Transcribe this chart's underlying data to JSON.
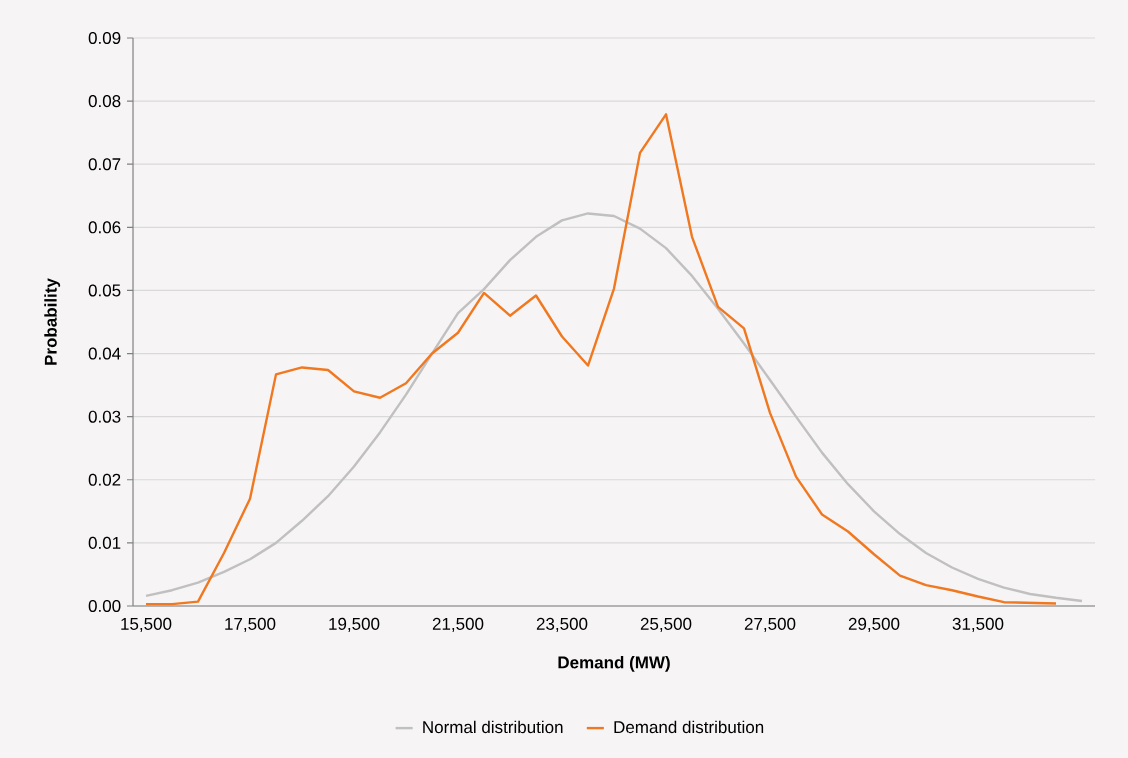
{
  "chart_data": {
    "type": "line",
    "xlabel": "Demand (MW)",
    "ylabel": "Probability",
    "categories": [
      "15,500",
      null,
      null,
      null,
      "17,500",
      null,
      null,
      null,
      "19,500",
      null,
      null,
      null,
      "21,500",
      null,
      null,
      null,
      "23,500",
      null,
      null,
      null,
      "25,500",
      null,
      null,
      null,
      "27,500",
      null,
      null,
      null,
      "29,500",
      null,
      null,
      null,
      "31,500",
      null,
      null,
      null,
      null
    ],
    "series": [
      {
        "name": "Normal distribution",
        "color": "#c0c0c0",
        "values": [
          0.0016,
          0.0025,
          0.0037,
          0.0054,
          0.0074,
          0.01,
          0.0135,
          0.0174,
          0.0221,
          0.0275,
          0.0335,
          0.04,
          0.0464,
          0.0502,
          0.0548,
          0.0585,
          0.0611,
          0.0622,
          0.0618,
          0.0598,
          0.0567,
          0.0523,
          0.0471,
          0.0416,
          0.0358,
          0.03,
          0.0243,
          0.0193,
          0.015,
          0.0114,
          0.0084,
          0.0061,
          0.0043,
          0.0029,
          0.0019,
          0.0013,
          0.0008
        ]
      },
      {
        "name": "Demand distribution",
        "color": "#f07820",
        "values": [
          0.0003,
          0.0003,
          0.0007,
          0.0084,
          0.017,
          0.0367,
          0.0378,
          0.0374,
          0.034,
          0.033,
          0.0353,
          0.04,
          0.0433,
          0.0496,
          0.046,
          0.0492,
          0.0427,
          0.0381,
          0.0503,
          0.0718,
          0.0779,
          0.0585,
          0.0474,
          0.044,
          0.0306,
          0.0205,
          0.0145,
          0.0118,
          0.0082,
          0.0048,
          0.0033,
          0.0025,
          0.0015,
          0.0006,
          0.0005,
          0.0004,
          null
        ]
      }
    ],
    "ylim": [
      0,
      0.09
    ],
    "yticks": [
      {
        "value": 0,
        "label": "0.00"
      },
      {
        "value": 0.01,
        "label": "0.01"
      },
      {
        "value": 0.02,
        "label": "0.02"
      },
      {
        "value": 0.03,
        "label": "0.03"
      },
      {
        "value": 0.04,
        "label": "0.04"
      },
      {
        "value": 0.05,
        "label": "0.05"
      },
      {
        "value": 0.06,
        "label": "0.06"
      },
      {
        "value": 0.07,
        "label": "0.07"
      },
      {
        "value": 0.08,
        "label": "0.08"
      },
      {
        "value": 0.09,
        "label": "0.09"
      }
    ],
    "grid": "y",
    "legend": "bottom"
  }
}
